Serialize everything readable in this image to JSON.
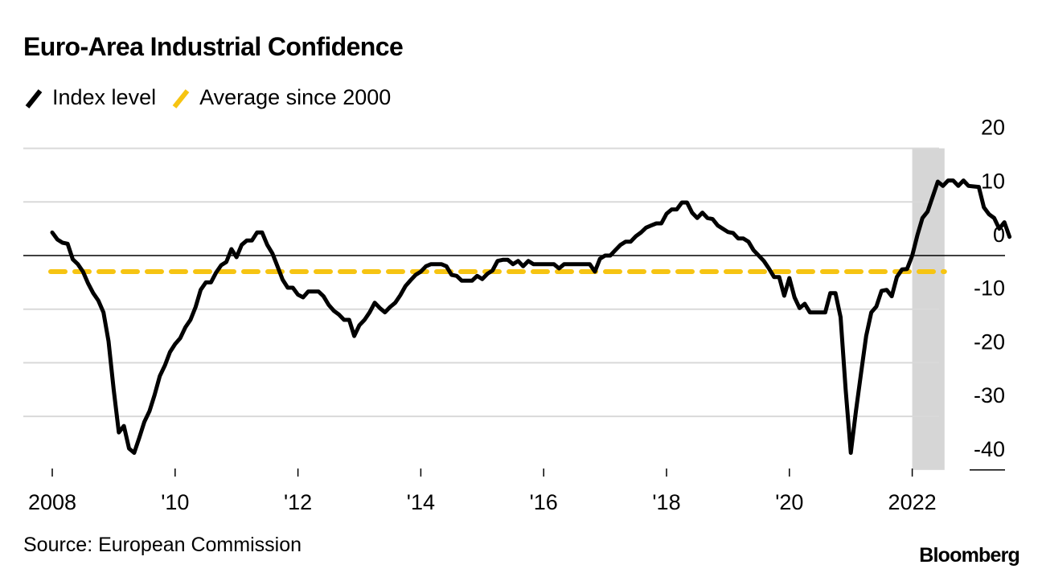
{
  "title": "Euro-Area Industrial Confidence",
  "source": "Source: European Commission",
  "brand": "Bloomberg",
  "colors": {
    "index_line": "#000000",
    "average_line": "#f6c412",
    "grid": "#d9d9d9",
    "zero_line": "#000000",
    "shade": "#d6d6d6"
  },
  "icons": {
    "legend_index": "diagonal-slash-black",
    "legend_average": "diagonal-slash-yellow"
  },
  "chart_data": {
    "type": "line",
    "title": "Euro-Area Industrial Confidence",
    "xlabel": "",
    "ylabel": "",
    "legend": [
      {
        "name": "Index level",
        "color": "#000000",
        "style": "solid"
      },
      {
        "name": "Average since 2000",
        "color": "#f6c412",
        "style": "dashed"
      }
    ],
    "legend_placement": "top-left",
    "x_ticks": [
      {
        "value": 2008,
        "label": "2008"
      },
      {
        "value": 2010,
        "label": "'10"
      },
      {
        "value": 2012,
        "label": "'12"
      },
      {
        "value": 2014,
        "label": "'14"
      },
      {
        "value": 2016,
        "label": "'16"
      },
      {
        "value": 2018,
        "label": "'18"
      },
      {
        "value": 2020,
        "label": "'20"
      },
      {
        "value": 2022,
        "label": "2022"
      }
    ],
    "xlim": [
      2008,
      2023.25
    ],
    "y_ticks": [
      20,
      10,
      0,
      -10,
      -20,
      -30,
      -40
    ],
    "ylim": [
      -40,
      20
    ],
    "y_axis_side": "right",
    "grid": true,
    "shaded_region": {
      "from": 2022.0,
      "to": 2022.5
    },
    "series": [
      {
        "name": "Index level",
        "start": "2008-01",
        "frequency": "monthly",
        "values": [
          4.3,
          3.0,
          2.4,
          2.2,
          -0.7,
          -1.6,
          -3.0,
          -5.2,
          -7.0,
          -8.4,
          -10.6,
          -16.0,
          -25.0,
          -33.0,
          -31.8,
          -36.0,
          -36.8,
          -34.0,
          -31.0,
          -29.0,
          -26.0,
          -22.5,
          -20.5,
          -18.0,
          -16.5,
          -15.4,
          -13.4,
          -12.0,
          -9.6,
          -6.4,
          -5.0,
          -5.0,
          -3.2,
          -1.8,
          -1.2,
          1.2,
          -0.3,
          2.0,
          2.8,
          2.8,
          4.3,
          4.3,
          2.0,
          0.4,
          -2.0,
          -4.5,
          -6.0,
          -6.0,
          -7.3,
          -7.8,
          -6.7,
          -6.7,
          -6.7,
          -7.6,
          -9.2,
          -10.3,
          -11.0,
          -12.0,
          -12.0,
          -15.0,
          -13.0,
          -12.0,
          -10.6,
          -8.8,
          -9.8,
          -10.6,
          -9.6,
          -8.8,
          -7.4,
          -5.7,
          -4.6,
          -3.6,
          -3.0,
          -2.0,
          -1.6,
          -1.6,
          -1.6,
          -2.0,
          -3.6,
          -3.8,
          -4.7,
          -4.7,
          -4.7,
          -3.8,
          -4.4,
          -3.4,
          -2.8,
          -1.0,
          -0.8,
          -0.8,
          -1.6,
          -1.0,
          -2.0,
          -1.0,
          -1.6,
          -1.6,
          -1.6,
          -1.6,
          -1.6,
          -2.4,
          -1.6,
          -1.6,
          -1.6,
          -1.6,
          -1.6,
          -1.6,
          -3.0,
          -0.6,
          0.0,
          0.0,
          1.0,
          2.0,
          2.6,
          2.6,
          3.6,
          4.3,
          5.2,
          5.6,
          6.0,
          6.0,
          7.8,
          8.6,
          8.6,
          9.9,
          9.9,
          8.0,
          7.0,
          8.0,
          7.0,
          6.8,
          5.6,
          5.0,
          4.4,
          4.2,
          3.2,
          3.2,
          2.6,
          1.0,
          0.0,
          -1.0,
          -2.4,
          -4.0,
          -4.0,
          -7.5,
          -4.2,
          -7.8,
          -9.8,
          -9.0,
          -10.6,
          -10.6,
          -10.6,
          -10.6,
          -7.0,
          -7.0,
          -11.5,
          -25.0,
          -36.8,
          -29.0,
          -22.0,
          -15.0,
          -10.6,
          -9.5,
          -6.6,
          -6.4,
          -7.6,
          -4.0,
          -2.6,
          -2.5,
          0.0,
          3.8,
          7.0,
          8.2,
          11.0,
          13.8,
          13.0,
          14.0,
          14.0,
          13.0,
          14.0,
          13.0,
          12.9,
          12.8,
          9.0,
          7.7,
          7.0,
          5.0,
          6.2,
          3.5
        ]
      },
      {
        "name": "Average since 2000",
        "values": [
          -3.0
        ],
        "from": 2008.0,
        "to": 2022.5
      }
    ]
  }
}
